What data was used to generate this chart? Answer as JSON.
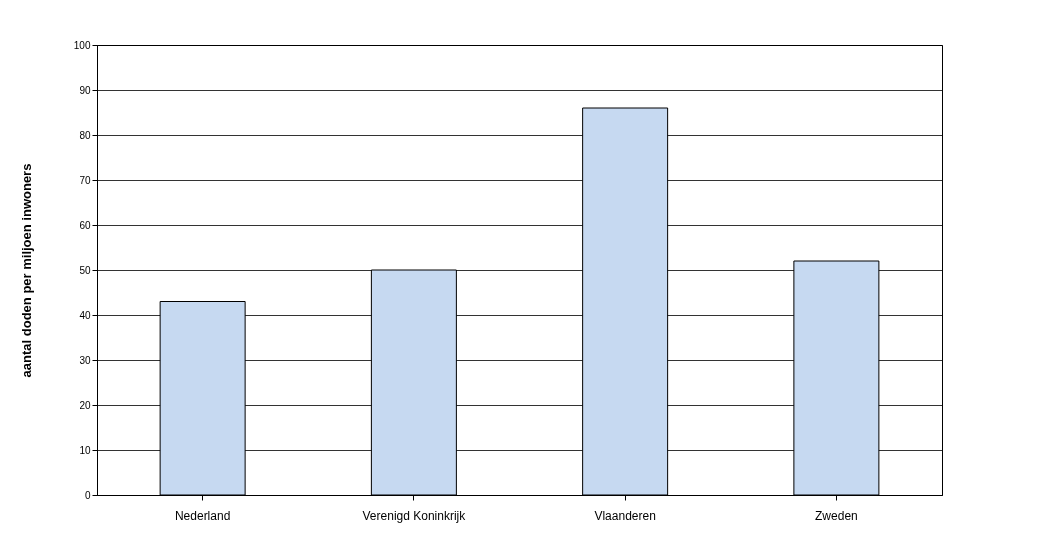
{
  "chart_data": {
    "type": "bar",
    "ylabel": "aantal doden per miljoen inwoners",
    "categories": [
      "Nederland",
      "Verenigd Koninkrijk",
      "Vlaanderen",
      "Zweden"
    ],
    "values": [
      43,
      50,
      86,
      52
    ],
    "color": "#c6d9f1",
    "ylim": [
      0,
      100
    ],
    "yticks": [
      0,
      10,
      20,
      30,
      40,
      50,
      60,
      70,
      80,
      90,
      100
    ],
    "grid": "y"
  }
}
